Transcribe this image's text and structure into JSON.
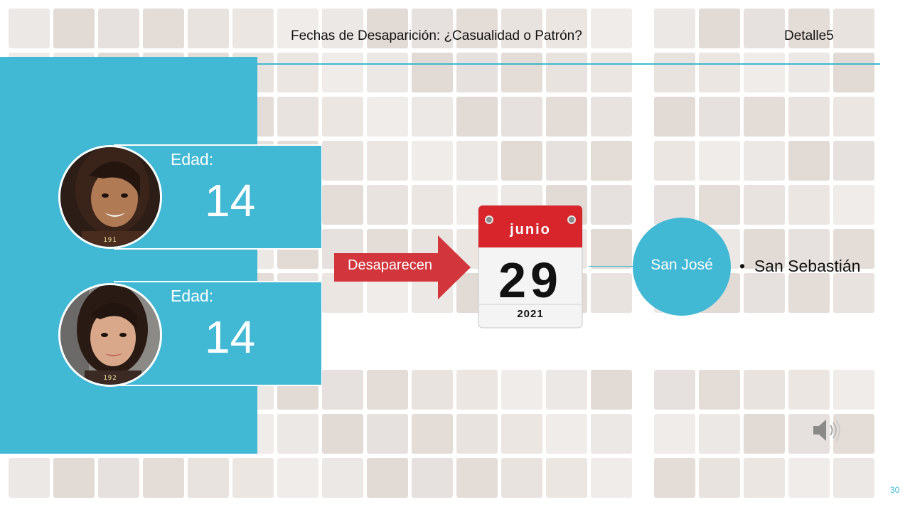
{
  "header": {
    "title": "Fechas de Desaparición: ¿Casualidad o Patrón?",
    "section": "Detalle5"
  },
  "persons": [
    {
      "age_label": "Edad:",
      "age_value": "14",
      "photo_tag": "191"
    },
    {
      "age_label": "Edad:",
      "age_value": "14",
      "photo_tag": "192"
    }
  ],
  "arrow_label": "Desaparecen",
  "calendar": {
    "month": "junio",
    "day": "29",
    "year": "2021"
  },
  "location": {
    "city": "San José",
    "detail": "San Sebastián"
  },
  "slide_number": "30",
  "colors": {
    "accent": "#41b8d4",
    "arrow": "#d2353b",
    "calendar_top": "#d8252c"
  },
  "icons": {
    "speaker": "speaker-icon"
  }
}
